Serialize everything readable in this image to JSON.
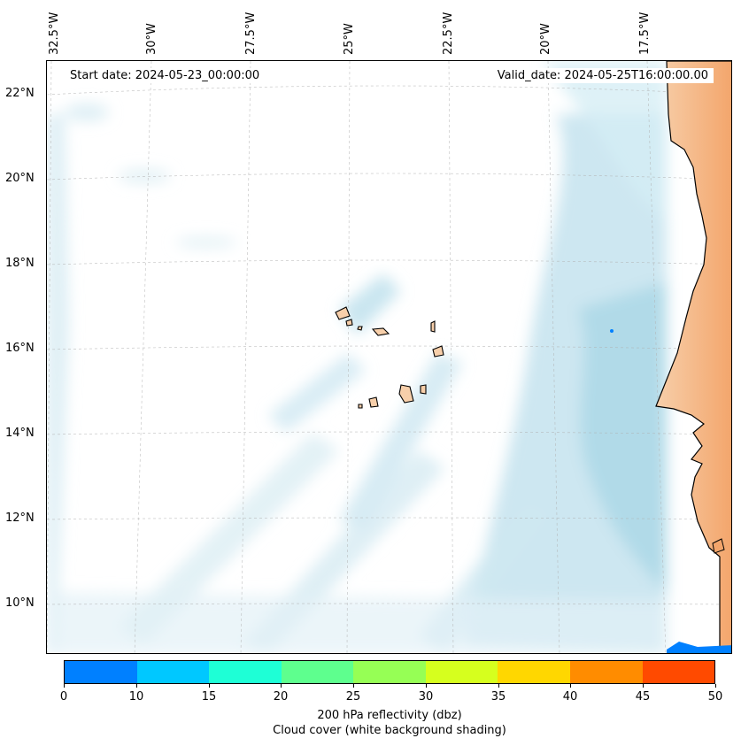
{
  "map": {
    "start_date": "Start date: 2024-05-23_00:00:00",
    "valid_date": "Valid_date: 2024-05-25T16:00:00.00",
    "lon_labels": [
      "32.5°W",
      "30°W",
      "27.5°W",
      "25°W",
      "22.5°W",
      "20°W",
      "17.5°W"
    ],
    "lat_labels": [
      "22°N",
      "20°N",
      "18°N",
      "16°N",
      "14°N",
      "12°N",
      "10°N"
    ],
    "colors": {
      "land": "#f7c9a0",
      "land_deep": "#f3a56b",
      "cloud_light": "#e3f1f7",
      "cloud_mid": "#c4e3ee",
      "cloud_dark": "#a8d6e6",
      "reflectivity_blue": "#0080ff",
      "gridline": "#b0b0b0"
    }
  },
  "colorbar": {
    "ticks": [
      "0",
      "10",
      "15",
      "20",
      "25",
      "30",
      "35",
      "40",
      "45",
      "50"
    ],
    "colors": [
      "#0080ff",
      "#00c8ff",
      "#1effd6",
      "#5eff8e",
      "#96ff55",
      "#d6ff1e",
      "#ffd700",
      "#ff8c00",
      "#ff4a00"
    ],
    "label_line1": "200 hPa reflectivity (dbz)",
    "label_line2": "Cloud cover (white background shading)"
  }
}
